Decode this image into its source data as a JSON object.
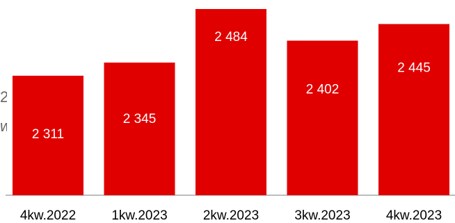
{
  "chart_data": {
    "type": "bar",
    "categories": [
      "4kw.2022",
      "1kw.2023",
      "2kw.2023",
      "3kw.2023",
      "4kw.2023"
    ],
    "values": [
      2311,
      2345,
      2484,
      2402,
      2445
    ],
    "value_labels": [
      "2 311",
      "2 345",
      "2 484",
      "2 402",
      "2 445"
    ],
    "bar_color": "#e00000",
    "label_color": "#ffffff",
    "axis_color": "#a6a6a6",
    "grid": false,
    "legend": "none"
  },
  "clipped": {
    "text_1": "2",
    "text_2": "w."
  }
}
